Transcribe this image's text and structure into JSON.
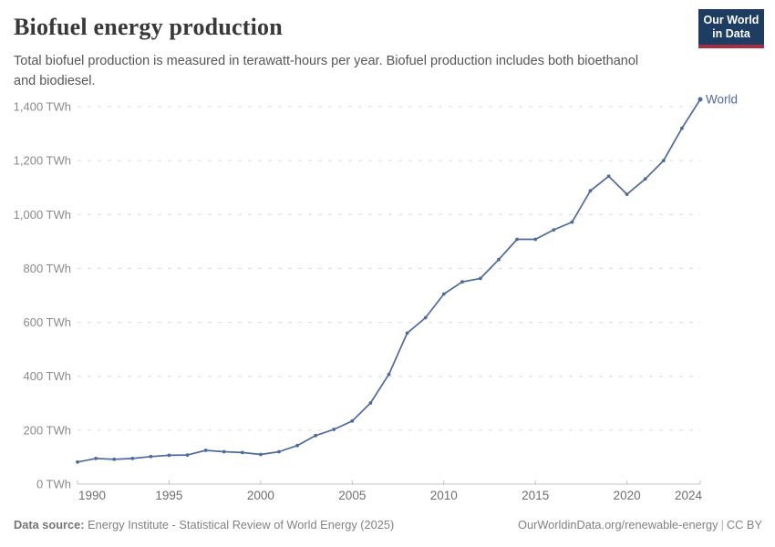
{
  "header": {
    "title": "Biofuel energy production",
    "subtitle_lines": [
      "Total biofuel production is measured in terawatt-hours per year. Biofuel production includes both bioethanol",
      "and biodiesel."
    ],
    "logo": {
      "line1": "Our World",
      "line2": "in Data",
      "bg_color": "#1d3d63",
      "accent_color": "#a82e43"
    }
  },
  "chart_data": {
    "type": "line",
    "title": "Biofuel energy production",
    "unit": "TWh",
    "xlabel": "",
    "ylabel": "",
    "xlim": [
      1990,
      2024
    ],
    "ylim": [
      0,
      1400
    ],
    "grid": "horizontal-dashed",
    "legend_position": "end-of-line",
    "x_ticks": [
      1990,
      1995,
      2000,
      2005,
      2010,
      2015,
      2020,
      2024
    ],
    "y_ticks": [
      0,
      200,
      400,
      600,
      800,
      1000,
      1200,
      1400
    ],
    "y_tick_labels": [
      "0 TWh",
      "200 TWh",
      "400 TWh",
      "600 TWh",
      "800 TWh",
      "1,000 TWh",
      "1,200 TWh",
      "1,400 TWh"
    ],
    "x": [
      1990,
      1991,
      1992,
      1993,
      1994,
      1995,
      1996,
      1997,
      1998,
      1999,
      2000,
      2001,
      2002,
      2003,
      2004,
      2005,
      2006,
      2007,
      2008,
      2009,
      2010,
      2011,
      2012,
      2013,
      2014,
      2015,
      2016,
      2017,
      2018,
      2019,
      2020,
      2021,
      2022,
      2023,
      2024
    ],
    "series": [
      {
        "name": "World",
        "color": "#4c6a9c",
        "values": [
          82,
          95,
          92,
          95,
          102,
          107,
          108,
          125,
          120,
          117,
          110,
          120,
          143,
          180,
          203,
          234,
          301,
          407,
          560,
          617,
          705,
          750,
          763,
          833,
          908,
          908,
          943,
          972,
          1088,
          1142,
          1075,
          1132,
          1200,
          1320,
          1427
        ]
      }
    ],
    "colors": {
      "gridline": "#dcdcdc",
      "axis": "#c3c3c3",
      "y_tick_label": "#8a8a8a",
      "x_tick_label": "#6e6e6e"
    }
  },
  "footer": {
    "source_label": "Data source:",
    "source_text": " Energy Institute - Statistical Review of World Energy (2025)",
    "url": "OurWorldinData.org/renewable-energy",
    "separator": "|",
    "license": "CC BY"
  }
}
